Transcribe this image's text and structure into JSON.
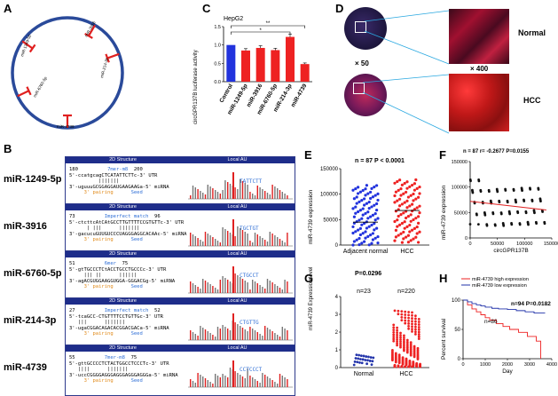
{
  "panels": {
    "A": "A",
    "B": "B",
    "C": "C",
    "D": "D",
    "E": "E",
    "F": "F",
    "G": "G",
    "H": "H"
  },
  "panelA": {
    "sites": [
      "miR-1249-5p",
      "miR-3916",
      "miR-6760-5p",
      "miR-214-3p",
      "miR-4739"
    ]
  },
  "panelB": {
    "header_left": "2D Structure",
    "header_right": "Local AU",
    "rows": [
      {
        "mirna": "miR-1249-5p",
        "pos_start": "180",
        "pos_end": "200",
        "l1": "5'-ccatgcagCTCATATTCTTc-3' UTR",
        "l2": "          |||||||",
        "l3": "3'-uguuuGCGGAGGAUGAAGAAGa-5' miRNA",
        "pairing": "3' pairing",
        "seed": "Seed",
        "tag": "7mer-m8",
        "site_text": "TATTCTT",
        "tag_color": "#2f6fd6"
      },
      {
        "mirna": "miR-3916",
        "pos_start": "73",
        "pos_end": "96",
        "l1": "5'-ctcttcAtCAtGCCTTGTTTTCCGTGTTc-3' UTR",
        "l2": "      | |||      |||||||",
        "l3": "3'-gacucuGUUGUCCCUAGGGAGGCACAAc-5' miRNA",
        "pairing": "3' pairing",
        "seed": "Seed",
        "tag": "Imperfect match",
        "site_text": "TGCTGT",
        "tag_color": "#2f6fd6"
      },
      {
        "mirna": "miR-6760-5p",
        "pos_start": "51",
        "pos_end": "75",
        "l1": "5'-gtTGCCCTCtACCTGCCTGCCCc-3' UTR",
        "l2": "     ||| ||      ||||||",
        "l3": "3'-agACGUGGAAGGUGGA-GGGACGg-5' miRNA",
        "pairing": "3' pairing",
        "seed": "Seed",
        "tag": "6mer",
        "site_text": "CTGCCT",
        "tag_color": "#2f6fd6"
      },
      {
        "mirna": "miR-214-3p",
        "pos_start": "27",
        "pos_end": "52",
        "l1": "5'-tcaGCC-CTGTTTTCCTGTTGc-3' UTR",
        "l2": "   |||      |||||||",
        "l3": "3'-ugaCGGACAGACACGGACGACa-5' miRNA",
        "pairing": "3' pairing",
        "seed": "Seed",
        "tag": "Imperfect match",
        "site_text": "CTGTTG",
        "tag_color": "#2f6fd6"
      },
      {
        "mirna": "miR-4739",
        "pos_start": "55",
        "pos_end": "75",
        "l1": "5'-gttGCCCCTCTACTGGCCTCCCTc-3' UTR",
        "l2": "   ||||      |||||||",
        "l3": "3'-uccCGGGGAGGGAGGGAGGGAGGGa-5' miRNA",
        "pairing": "3' pairing",
        "seed": "Seed",
        "tag": "7mer-m8",
        "site_text": "CCTCCCT",
        "tag_color": "#2f6fd6"
      }
    ]
  },
  "panelC": {
    "title": "HepG2",
    "ylabel": "circGPR137B luciferase activity",
    "sig1": "**",
    "sig2": "*"
  },
  "panelD": {
    "mag_low": "× 50",
    "mag_high": "× 400",
    "normal": "Normal",
    "hcc": "HCC"
  },
  "panelE": {
    "stat": "n = 87 P < 0.0001",
    "ylabel": "miR-4739 expression"
  },
  "panelF": {
    "stat": "n = 87 r= -0.2677 P=0.0155",
    "ylabel": "miR-4739 expression",
    "xlabel": "circGPR137B"
  },
  "panelG": {
    "stat": "P=0.0296",
    "n1": "n=23",
    "n2": "n=220",
    "ylabel": "miR-4739 Expression level"
  },
  "panelH": {
    "legend_high": "miR-4739 high expression",
    "legend_low": "miR-4739 low expression",
    "stat": "n=94 P=0.0182",
    "n_low": "n=86",
    "ylabel": "Percent survival",
    "xlabel": "Day"
  },
  "chart_data": [
    {
      "type": "bar",
      "panel": "C",
      "title": "HepG2",
      "ylabel": "circGPR137B luciferase activity",
      "categories": [
        "Control",
        "miR-1249-5p",
        "miR-3916",
        "miR-6760-5p",
        "miR-214-3p",
        "miR-4739"
      ],
      "values": [
        1.0,
        0.85,
        0.92,
        0.86,
        1.22,
        0.48
      ],
      "errors": [
        0.0,
        0.05,
        0.06,
        0.05,
        0.08,
        0.03
      ],
      "colors": [
        "#2233dd",
        "#ee2222",
        "#ee2222",
        "#ee2222",
        "#ee2222",
        "#ee2222"
      ],
      "ylim": [
        0,
        1.5
      ],
      "yticks": [
        0.0,
        0.5,
        1.0,
        1.5
      ]
    },
    {
      "type": "scatter",
      "panel": "E",
      "ylabel": "miR-4739 expression",
      "categories": [
        "Adjacent normal",
        "HCC"
      ],
      "means": [
        45000,
        68000
      ],
      "ylim": [
        0,
        150000
      ],
      "yticks": [
        0,
        50000,
        100000,
        150000
      ],
      "colors": [
        "#2233dd",
        "#ee2222"
      ]
    },
    {
      "type": "scatter",
      "panel": "F",
      "xlabel": "circGPR137B",
      "ylabel": "miR-4739 expression",
      "xlim": [
        0,
        150000
      ],
      "ylim": [
        0,
        150000
      ],
      "xticks": [
        0,
        50000,
        100000,
        150000
      ],
      "yticks": [
        0,
        50000,
        100000,
        150000
      ],
      "fit": {
        "x": [
          0,
          140000
        ],
        "y": [
          72000,
          55000
        ]
      }
    },
    {
      "type": "scatter",
      "panel": "G",
      "ylabel": "miR-4739 Expression level",
      "categories": [
        "Normal",
        "HCC"
      ],
      "ylim": [
        0,
        4
      ],
      "yticks": [
        0,
        1,
        2,
        3,
        4
      ],
      "colors": [
        "#2233aa",
        "#ee2222"
      ]
    },
    {
      "type": "line",
      "panel": "H",
      "xlabel": "Day",
      "ylabel": "Percent survival",
      "xlim": [
        0,
        4000
      ],
      "ylim": [
        0,
        100
      ],
      "xticks": [
        0,
        1000,
        2000,
        3000,
        4000
      ],
      "yticks": [
        0,
        50,
        100
      ],
      "series": [
        {
          "name": "miR-4739 high expression",
          "color": "#ee2222",
          "x": [
            0,
            200,
            400,
            600,
            800,
            1000,
            1200,
            1500,
            1800,
            2100,
            2500,
            2900,
            3300,
            3500
          ],
          "y": [
            100,
            92,
            85,
            80,
            75,
            70,
            66,
            60,
            55,
            50,
            45,
            38,
            30,
            0
          ]
        },
        {
          "name": "miR-4739 low expression",
          "color": "#2233aa",
          "x": [
            0,
            200,
            400,
            600,
            800,
            1000,
            1300,
            1600,
            2000,
            2400,
            2800,
            3200,
            3700
          ],
          "y": [
            100,
            97,
            94,
            92,
            90,
            88,
            86,
            85,
            84,
            82,
            80,
            78,
            78
          ]
        }
      ]
    }
  ]
}
